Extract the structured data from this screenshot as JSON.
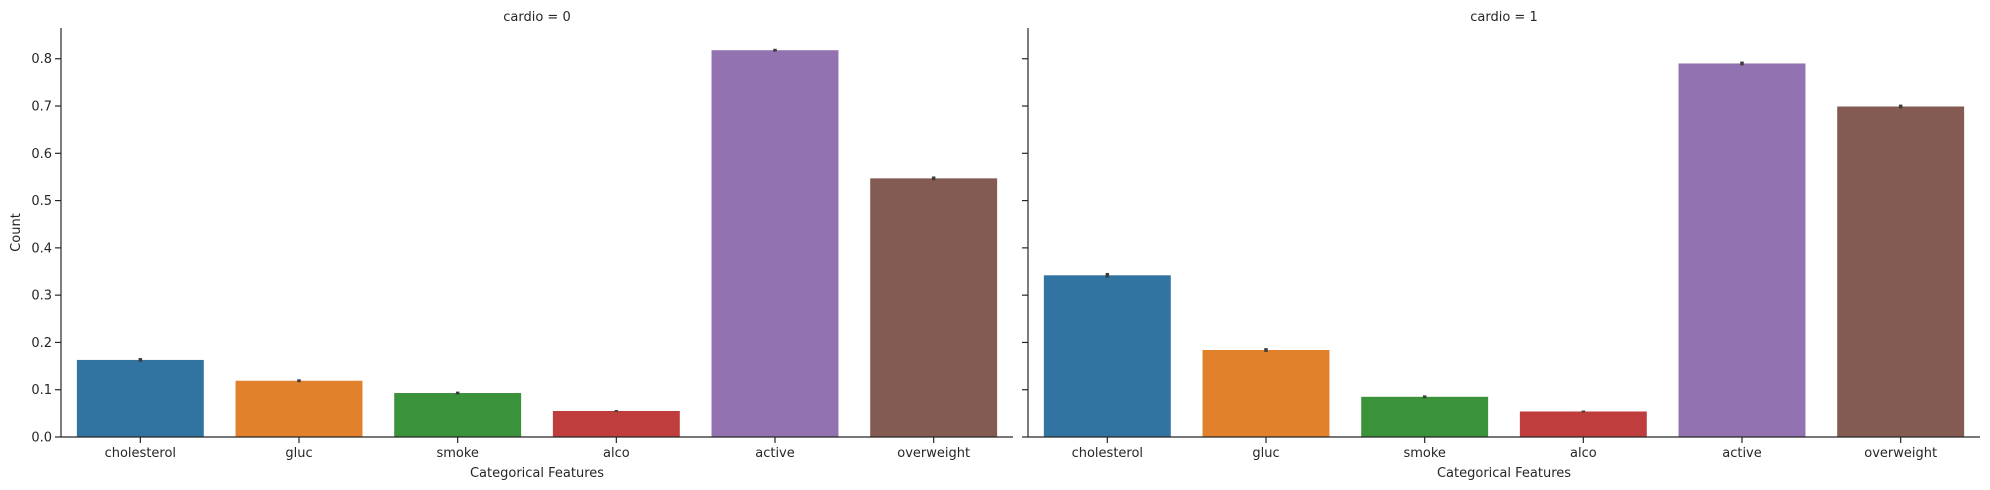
{
  "chart_data": [
    {
      "type": "bar",
      "title": "cardio = 0",
      "xlabel": "Categorical Features",
      "ylabel": "Count",
      "ylim": [
        0,
        0.865
      ],
      "yticks": [
        0.0,
        0.1,
        0.2,
        0.3,
        0.4,
        0.5,
        0.6,
        0.7,
        0.8
      ],
      "categories": [
        "cholesterol",
        "gluc",
        "smoke",
        "alco",
        "active",
        "overweight"
      ],
      "values": [
        0.163,
        0.119,
        0.093,
        0.055,
        0.818,
        0.547
      ],
      "errors": [
        0.004,
        0.003,
        0.003,
        0.002,
        0.003,
        0.004
      ],
      "colors": [
        "#3274a1",
        "#e1812c",
        "#3a923a",
        "#c03d3e",
        "#9372b2",
        "#845b53"
      ]
    },
    {
      "type": "bar",
      "title": "cardio = 1",
      "xlabel": "Categorical Features",
      "ylabel": "",
      "ylim": [
        0,
        0.865
      ],
      "yticks": [
        0.0,
        0.1,
        0.2,
        0.3,
        0.4,
        0.5,
        0.6,
        0.7,
        0.8
      ],
      "categories": [
        "cholesterol",
        "gluc",
        "smoke",
        "alco",
        "active",
        "overweight"
      ],
      "values": [
        0.342,
        0.184,
        0.085,
        0.054,
        0.79,
        0.699
      ],
      "errors": [
        0.005,
        0.004,
        0.003,
        0.002,
        0.004,
        0.004
      ],
      "colors": [
        "#3274a1",
        "#e1812c",
        "#3a923a",
        "#c03d3e",
        "#9372b2",
        "#845b53"
      ]
    }
  ]
}
